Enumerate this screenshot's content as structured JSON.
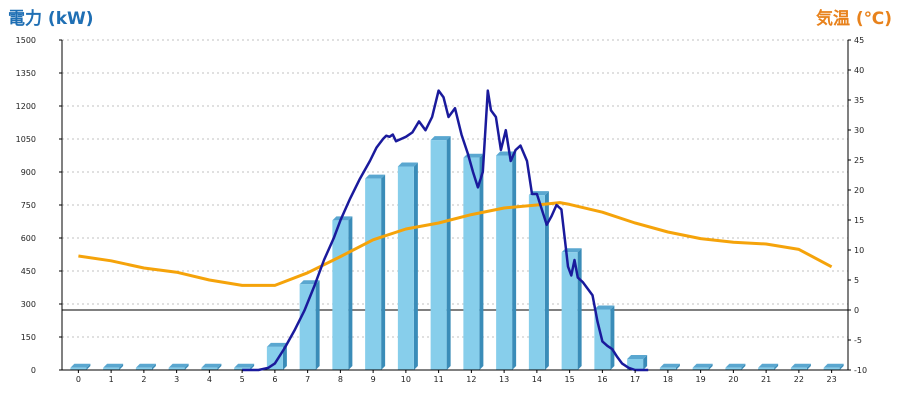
{
  "chart_data": {
    "type": "bar",
    "left_title": "電力 (kW)",
    "right_title": "気温 (℃)",
    "left_title_color": "#1f6fb4",
    "right_title_color": "#e8821c",
    "x_ticks": [
      "0",
      "1",
      "2",
      "3",
      "4",
      "5",
      "6",
      "7",
      "8",
      "9",
      "10",
      "11",
      "12",
      "13",
      "14",
      "15",
      "16",
      "17",
      "18",
      "19",
      "20",
      "21",
      "22",
      "23"
    ],
    "y_left_ticks": [
      "0",
      "150",
      "300",
      "450",
      "600",
      "750",
      "900",
      "1050",
      "1200",
      "1350",
      "1500"
    ],
    "y_right_ticks": [
      "-10",
      "-5",
      "0",
      "5",
      "10",
      "15",
      "20",
      "25",
      "30",
      "35",
      "40",
      "45"
    ],
    "ylim_left": [
      0,
      1500
    ],
    "ylim_right": [
      -10,
      45
    ],
    "grid": true,
    "bar_color": "#87ceeb",
    "power_line_color": "#1a1a9c",
    "temp_line_color": "#f5a30a",
    "bars": {
      "name": "電力",
      "values": [
        10,
        10,
        10,
        10,
        10,
        10,
        105,
        390,
        680,
        870,
        925,
        1045,
        965,
        975,
        795,
        535,
        275,
        50,
        10,
        10,
        10,
        10,
        10,
        10
      ]
    },
    "power_line": {
      "x": [
        5.0,
        5.5,
        5.8,
        6.0,
        6.3,
        6.6,
        6.9,
        7.2,
        7.5,
        7.8,
        8.0,
        8.3,
        8.6,
        8.9,
        9.1,
        9.3,
        9.4,
        9.5,
        9.6,
        9.7,
        9.85,
        10.0,
        10.2,
        10.4,
        10.6,
        10.8,
        11.0,
        11.15,
        11.3,
        11.5,
        11.7,
        11.9,
        12.05,
        12.2,
        12.35,
        12.5,
        12.6,
        12.75,
        12.9,
        13.05,
        13.2,
        13.35,
        13.5,
        13.7,
        13.85,
        14.0,
        14.15,
        14.3,
        14.45,
        14.6,
        14.75,
        14.85,
        14.95,
        15.05,
        15.15,
        15.25,
        15.4,
        15.55,
        15.7,
        15.85,
        16.0,
        16.15,
        16.3,
        16.45,
        16.6,
        16.8,
        17.0,
        17.2,
        17.4
      ],
      "y": [
        0,
        0,
        10,
        30,
        100,
        180,
        270,
        380,
        500,
        600,
        680,
        780,
        870,
        950,
        1010,
        1050,
        1065,
        1060,
        1070,
        1040,
        1050,
        1060,
        1080,
        1130,
        1090,
        1150,
        1270,
        1240,
        1150,
        1190,
        1070,
        980,
        900,
        830,
        900,
        1270,
        1180,
        1150,
        1000,
        1090,
        950,
        1000,
        1020,
        950,
        800,
        800,
        730,
        660,
        700,
        750,
        730,
        600,
        470,
        430,
        500,
        420,
        400,
        370,
        340,
        220,
        130,
        110,
        95,
        60,
        30,
        10,
        0,
        0,
        0
      ]
    },
    "temp_line": {
      "x": [
        0.0,
        1.0,
        2.0,
        3.0,
        4.0,
        5.0,
        6.0,
        7.0,
        8.0,
        9.0,
        10.0,
        11.0,
        12.0,
        13.0,
        14.0,
        14.7,
        15.0,
        16.0,
        17.0,
        18.0,
        19.0,
        20.0,
        21.0,
        22.0,
        23.0
      ],
      "y": [
        9.0,
        8.2,
        7.0,
        6.3,
        5.0,
        4.1,
        4.1,
        6.2,
        8.9,
        11.7,
        13.5,
        14.5,
        15.9,
        17.0,
        17.5,
        17.9,
        17.6,
        16.3,
        14.5,
        13.0,
        11.9,
        11.3,
        11.0,
        10.1,
        7.2
      ]
    }
  }
}
